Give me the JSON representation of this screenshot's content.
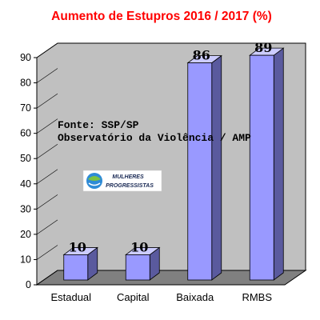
{
  "chart_data": {
    "type": "bar",
    "title": "Aumento de Estupros 2016 / 2017 (%)",
    "categories": [
      "Estadual",
      "Capital",
      "Baixada",
      "RMBS"
    ],
    "values": [
      10,
      10,
      86,
      89
    ],
    "data_labels": [
      "10",
      "10",
      "86",
      "89"
    ],
    "xlabel": "",
    "ylabel": "",
    "ylim": [
      0,
      90
    ],
    "yticks": [
      0,
      10,
      20,
      30,
      40,
      50,
      60,
      70,
      80,
      90
    ],
    "grid": false,
    "legend": "none",
    "three_d": true,
    "colors": {
      "title": "#ff0000",
      "bar_front": "#9999ff",
      "bar_top": "#ccccff",
      "bar_side": "#5a5a9e",
      "wall": "#c0c0c0",
      "floor": "#808080"
    },
    "annotations": {
      "source_line1": "Fonte: SSP/SP",
      "source_line2": "Observatório da Violência / AMP"
    },
    "logo": {
      "line1": "MULHERES",
      "line2": "PROGRESSISTAS"
    }
  }
}
